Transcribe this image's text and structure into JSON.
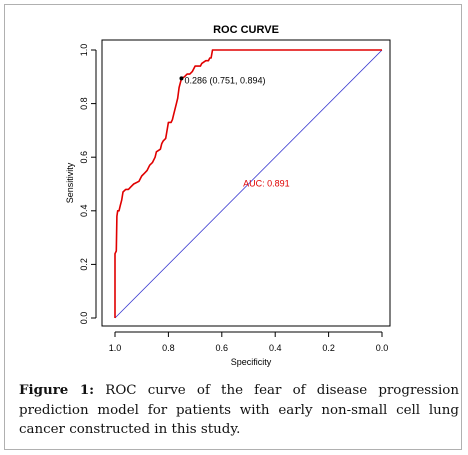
{
  "caption": {
    "label": "Figure 1:",
    "text": " ROC curve of the fear of disease progression prediction model for patients with early non-small cell lung cancer constructed in this study."
  },
  "chart_data": {
    "type": "line",
    "title": "ROC CURVE",
    "xlabel": "Specificity",
    "ylabel": "Sensitivity",
    "xlim": [
      1.0,
      0.0
    ],
    "ylim": [
      0.0,
      1.0
    ],
    "x_ticks": [
      "1.0",
      "0.8",
      "0.6",
      "0.4",
      "0.2",
      "0.0"
    ],
    "y_ticks": [
      "0.0",
      "0.2",
      "0.4",
      "0.6",
      "0.8",
      "1.0"
    ],
    "grid": false,
    "series": [
      {
        "color": "#e00000",
        "points": [
          [
            1.0,
            0.0
          ],
          [
            1.0,
            0.24
          ],
          [
            0.995,
            0.25
          ],
          [
            0.993,
            0.38
          ],
          [
            0.99,
            0.4
          ],
          [
            0.985,
            0.4
          ],
          [
            0.98,
            0.42
          ],
          [
            0.975,
            0.44
          ],
          [
            0.97,
            0.47
          ],
          [
            0.96,
            0.48
          ],
          [
            0.95,
            0.48
          ],
          [
            0.94,
            0.49
          ],
          [
            0.93,
            0.5
          ],
          [
            0.91,
            0.51
          ],
          [
            0.9,
            0.53
          ],
          [
            0.89,
            0.54
          ],
          [
            0.88,
            0.55
          ],
          [
            0.87,
            0.57
          ],
          [
            0.86,
            0.58
          ],
          [
            0.85,
            0.6
          ],
          [
            0.845,
            0.62
          ],
          [
            0.83,
            0.63
          ],
          [
            0.825,
            0.65
          ],
          [
            0.82,
            0.66
          ],
          [
            0.81,
            0.67
          ],
          [
            0.8,
            0.73
          ],
          [
            0.79,
            0.73
          ],
          [
            0.785,
            0.74
          ],
          [
            0.78,
            0.76
          ],
          [
            0.77,
            0.8
          ],
          [
            0.765,
            0.82
          ],
          [
            0.76,
            0.86
          ],
          [
            0.751,
            0.894
          ],
          [
            0.74,
            0.9
          ],
          [
            0.73,
            0.91
          ],
          [
            0.72,
            0.91
          ],
          [
            0.71,
            0.92
          ],
          [
            0.7,
            0.94
          ],
          [
            0.68,
            0.94
          ],
          [
            0.675,
            0.95
          ],
          [
            0.66,
            0.96
          ],
          [
            0.65,
            0.96
          ],
          [
            0.645,
            0.97
          ],
          [
            0.64,
            0.97
          ],
          [
            0.635,
            1.0
          ],
          [
            0.0,
            1.0
          ]
        ]
      },
      {
        "type": "reference",
        "color": "#3a3ad0",
        "points": [
          [
            1.0,
            0.0
          ],
          [
            0.0,
            1.0
          ]
        ]
      }
    ],
    "annotations": [
      {
        "text": "0.286 (0.751, 0.894)",
        "x": 0.751,
        "y": 0.894,
        "color": "#000000"
      },
      {
        "text": "AUC: 0.891",
        "x": 0.52,
        "y": 0.49,
        "color": "#e00000"
      }
    ]
  }
}
